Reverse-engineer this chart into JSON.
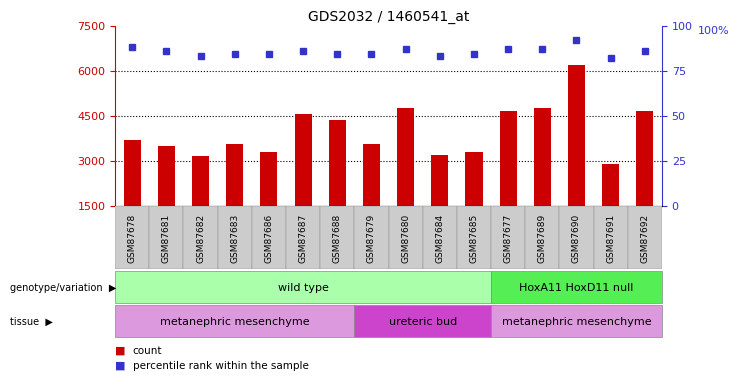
{
  "title": "GDS2032 / 1460541_at",
  "samples": [
    "GSM87678",
    "GSM87681",
    "GSM87682",
    "GSM87683",
    "GSM87686",
    "GSM87687",
    "GSM87688",
    "GSM87679",
    "GSM87680",
    "GSM87684",
    "GSM87685",
    "GSM87677",
    "GSM87689",
    "GSM87690",
    "GSM87691",
    "GSM87692"
  ],
  "counts": [
    3700,
    3500,
    3150,
    3550,
    3300,
    4550,
    4350,
    3550,
    4750,
    3200,
    3300,
    4650,
    4750,
    6200,
    2900,
    4650
  ],
  "percentiles": [
    88,
    86,
    83,
    84,
    84,
    86,
    84,
    84,
    87,
    83,
    84,
    87,
    87,
    92,
    82,
    86
  ],
  "ylim_left": [
    1500,
    7500
  ],
  "ylim_right": [
    0,
    100
  ],
  "yticks_left": [
    1500,
    3000,
    4500,
    6000,
    7500
  ],
  "yticks_right": [
    0,
    25,
    50,
    75,
    100
  ],
  "bar_color": "#cc0000",
  "dot_color": "#3333cc",
  "left_axis_color": "#cc0000",
  "right_axis_color": "#3333cc",
  "genotype_groups": [
    {
      "label": "wild type",
      "start": 0,
      "end": 10,
      "color": "#aaffaa"
    },
    {
      "label": "HoxA11 HoxD11 null",
      "start": 11,
      "end": 15,
      "color": "#55ee55"
    }
  ],
  "tissue_groups": [
    {
      "label": "metanephric mesenchyme",
      "start": 0,
      "end": 6,
      "color": "#dd99dd"
    },
    {
      "label": "ureteric bud",
      "start": 7,
      "end": 10,
      "color": "#cc44cc"
    },
    {
      "label": "metanephric mesenchyme",
      "start": 11,
      "end": 15,
      "color": "#dd99dd"
    }
  ],
  "xticklabel_bg": "#cccccc",
  "grid_lines_pct": [
    25,
    50,
    75
  ]
}
